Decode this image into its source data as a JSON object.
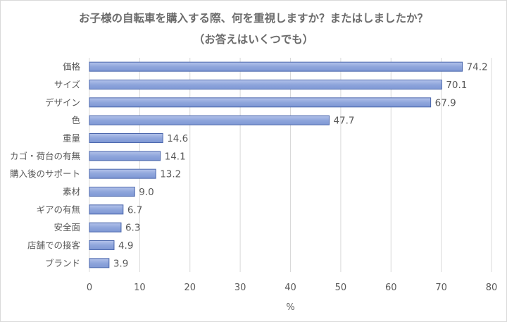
{
  "chart_data": {
    "type": "bar",
    "orientation": "horizontal",
    "title": "お子様の自転車を購入する際、何を重視しますか？またはしましたか？",
    "subtitle": "（お答えはいくつでも）",
    "categories": [
      "価格",
      "サイズ",
      "デザイン",
      "色",
      "重量",
      "カゴ・荷台の有無",
      "購入後のサポート",
      "素材",
      "ギアの有無",
      "安全面",
      "店舗での接客",
      "ブランド"
    ],
    "values": [
      74.2,
      70.1,
      67.9,
      47.7,
      14.6,
      14.1,
      13.2,
      9.0,
      6.7,
      6.3,
      4.9,
      3.9
    ],
    "value_labels": [
      "74.2",
      "70.1",
      "67.9",
      "47.7",
      "14.6",
      "14.1",
      "13.2",
      "9.0",
      "6.7",
      "6.3",
      "4.9",
      "3.9"
    ],
    "xlabel": "%",
    "xlim": [
      0,
      80
    ],
    "xticks": [
      "0",
      "10",
      "20",
      "30",
      "40",
      "50",
      "60",
      "70",
      "80"
    ],
    "grid": true,
    "bar_color": "#8fa6dc",
    "bar_border": "#4a66ac"
  }
}
